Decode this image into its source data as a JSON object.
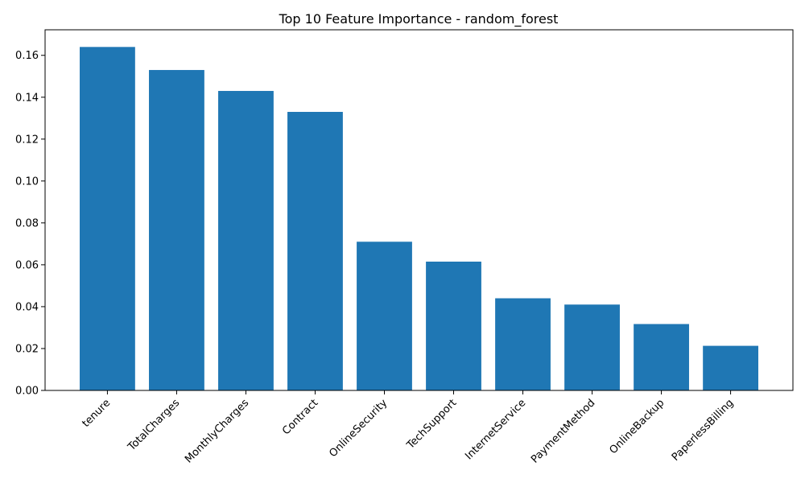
{
  "colors": {
    "bar": "#1f77b4",
    "axis": "#000000",
    "background": "#ffffff"
  },
  "chart_data": {
    "type": "bar",
    "title": "Top 10 Feature Importance - random_forest",
    "xlabel": "",
    "ylabel": "",
    "categories": [
      "tenure",
      "TotalCharges",
      "MonthlyCharges",
      "Contract",
      "OnlineSecurity",
      "TechSupport",
      "InternetService",
      "PaymentMethod",
      "OnlineBackup",
      "PaperlessBilling"
    ],
    "values": [
      0.164,
      0.153,
      0.143,
      0.133,
      0.071,
      0.0615,
      0.044,
      0.041,
      0.0317,
      0.0213
    ],
    "yticks": [
      0.0,
      0.02,
      0.04,
      0.06,
      0.08,
      0.1,
      0.12,
      0.14,
      0.16
    ],
    "ytick_labels": [
      "0.00",
      "0.02",
      "0.04",
      "0.06",
      "0.08",
      "0.10",
      "0.12",
      "0.14",
      "0.16"
    ],
    "ylim": [
      0,
      0.1722
    ],
    "grid": false,
    "legend": "none"
  }
}
